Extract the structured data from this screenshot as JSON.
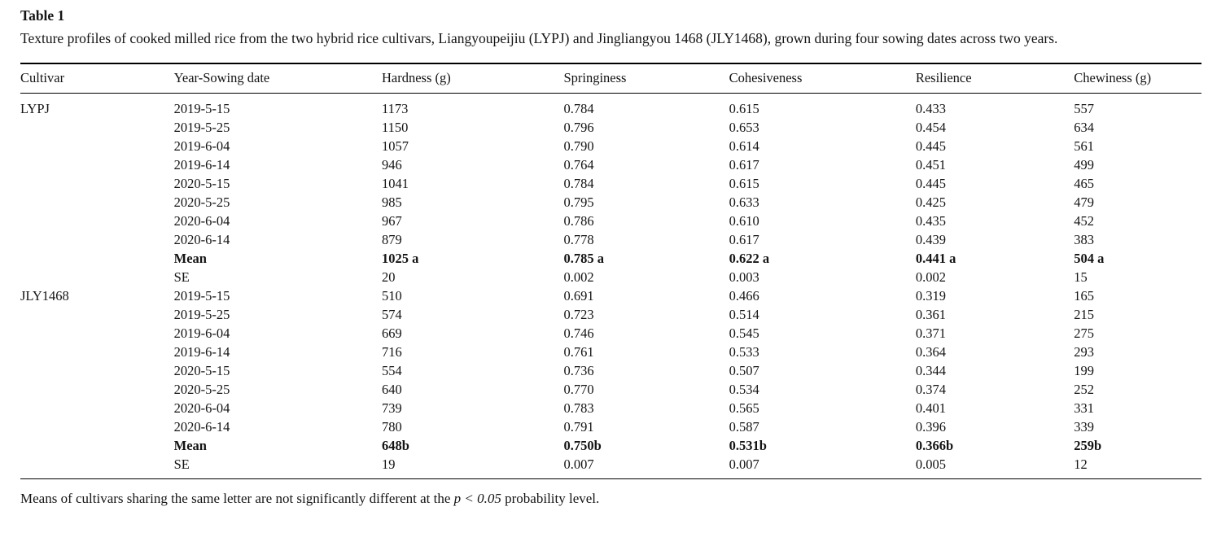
{
  "page": {
    "label": "Table 1",
    "caption": "Texture profiles of cooked milled rice from the two hybrid rice cultivars, Liangyoupeijiu (LYPJ) and Jingliangyou 1468 (JLY1468), grown during four sowing dates across two years.",
    "columns": [
      "Cultivar",
      "Year-Sowing date",
      "Hardness (g)",
      "Springiness",
      "Cohesiveness",
      "Resilience",
      "Chewiness (g)"
    ],
    "rows": [
      {
        "bold": false,
        "cells": [
          "LYPJ",
          "2019-5-15",
          "1173",
          "0.784",
          "0.615",
          "0.433",
          "557"
        ]
      },
      {
        "bold": false,
        "cells": [
          "",
          "2019-5-25",
          "1150",
          "0.796",
          "0.653",
          "0.454",
          "634"
        ]
      },
      {
        "bold": false,
        "cells": [
          "",
          "2019-6-04",
          "1057",
          "0.790",
          "0.614",
          "0.445",
          "561"
        ]
      },
      {
        "bold": false,
        "cells": [
          "",
          "2019-6-14",
          "946",
          "0.764",
          "0.617",
          "0.451",
          "499"
        ]
      },
      {
        "bold": false,
        "cells": [
          "",
          "2020-5-15",
          "1041",
          "0.784",
          "0.615",
          "0.445",
          "465"
        ]
      },
      {
        "bold": false,
        "cells": [
          "",
          "2020-5-25",
          "985",
          "0.795",
          "0.633",
          "0.425",
          "479"
        ]
      },
      {
        "bold": false,
        "cells": [
          "",
          "2020-6-04",
          "967",
          "0.786",
          "0.610",
          "0.435",
          "452"
        ]
      },
      {
        "bold": false,
        "cells": [
          "",
          "2020-6-14",
          "879",
          "0.778",
          "0.617",
          "0.439",
          "383"
        ]
      },
      {
        "bold": true,
        "cells": [
          "",
          "Mean",
          "1025 a",
          "0.785 a",
          "0.622 a",
          "0.441 a",
          "504 a"
        ]
      },
      {
        "bold": false,
        "cells": [
          "",
          "SE",
          "20",
          "0.002",
          "0.003",
          "0.002",
          "15"
        ]
      },
      {
        "bold": false,
        "cells": [
          "JLY1468",
          "2019-5-15",
          "510",
          "0.691",
          "0.466",
          "0.319",
          "165"
        ]
      },
      {
        "bold": false,
        "cells": [
          "",
          "2019-5-25",
          "574",
          "0.723",
          "0.514",
          "0.361",
          "215"
        ]
      },
      {
        "bold": false,
        "cells": [
          "",
          "2019-6-04",
          "669",
          "0.746",
          "0.545",
          "0.371",
          "275"
        ]
      },
      {
        "bold": false,
        "cells": [
          "",
          "2019-6-14",
          "716",
          "0.761",
          "0.533",
          "0.364",
          "293"
        ]
      },
      {
        "bold": false,
        "cells": [
          "",
          "2020-5-15",
          "554",
          "0.736",
          "0.507",
          "0.344",
          "199"
        ]
      },
      {
        "bold": false,
        "cells": [
          "",
          "2020-5-25",
          "640",
          "0.770",
          "0.534",
          "0.374",
          "252"
        ]
      },
      {
        "bold": false,
        "cells": [
          "",
          "2020-6-04",
          "739",
          "0.783",
          "0.565",
          "0.401",
          "331"
        ]
      },
      {
        "bold": false,
        "cells": [
          "",
          "2020-6-14",
          "780",
          "0.791",
          "0.587",
          "0.396",
          "339"
        ]
      },
      {
        "bold": true,
        "cells": [
          "",
          "Mean",
          "648b",
          "0.750b",
          "0.531b",
          "0.366b",
          "259b"
        ]
      },
      {
        "bold": false,
        "cells": [
          "",
          "SE",
          "19",
          "0.007",
          "0.007",
          "0.005",
          "12"
        ]
      }
    ],
    "footnote": {
      "prefix": "Means of cultivars sharing the same letter are not significantly different at the ",
      "italic": "p < 0.05",
      "suffix": " probability level."
    },
    "colors": {
      "text": "#141414",
      "rule": "#000000",
      "background": "#ffffff"
    }
  }
}
